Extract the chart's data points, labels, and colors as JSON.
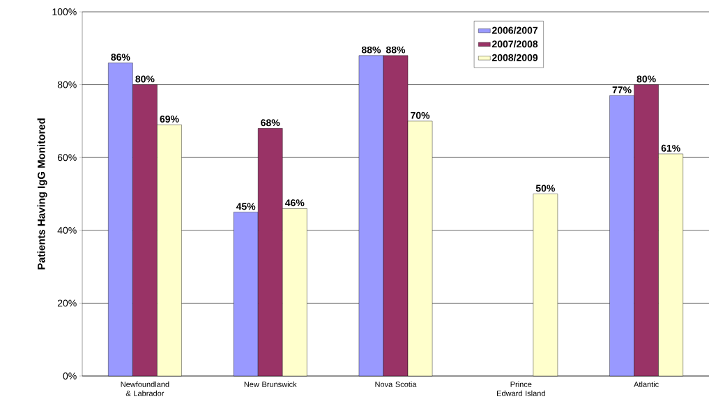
{
  "chart_data": {
    "type": "bar",
    "ylabel": "Patients Having IgG Monitored",
    "categories": [
      "Newfoundland & Labrador",
      "New Brunswick",
      "Nova Scotia",
      "Prince Edward Island",
      "Atlantic"
    ],
    "series": [
      {
        "name": "2006/2007",
        "color": "#9999ff",
        "values": [
          86,
          45,
          88,
          null,
          77
        ],
        "value_labels": [
          "86%",
          "45%",
          "88%",
          null,
          "77%"
        ]
      },
      {
        "name": "2007/2008",
        "color": "#993366",
        "values": [
          80,
          68,
          88,
          null,
          80
        ],
        "value_labels": [
          "80%",
          "68%",
          "88%",
          null,
          "80%"
        ]
      },
      {
        "name": "2008/2009",
        "color": "#ffffcc",
        "values": [
          69,
          46,
          70,
          50,
          61
        ],
        "value_labels": [
          "69%",
          "46%",
          "70%",
          "50%",
          "61%"
        ]
      }
    ],
    "ylim": [
      0,
      100
    ],
    "yticks": [
      {
        "value": 0,
        "label": "0%"
      },
      {
        "value": 20,
        "label": "20%"
      },
      {
        "value": 40,
        "label": "40%"
      },
      {
        "value": 60,
        "label": "60%"
      },
      {
        "value": 80,
        "label": "80%"
      },
      {
        "value": 100,
        "label": "100%"
      }
    ],
    "grid": "y",
    "legend": "top right"
  }
}
